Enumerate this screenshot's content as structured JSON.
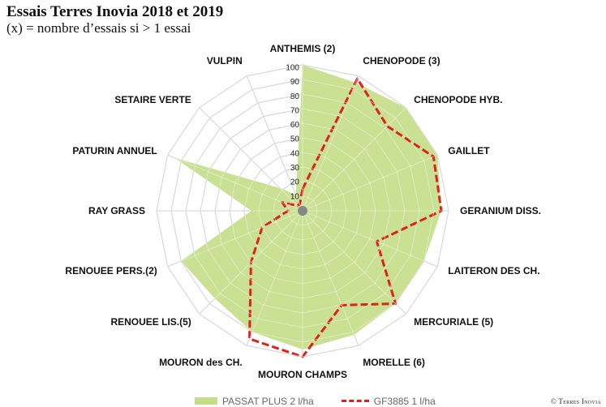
{
  "title": "Essais Terres Inovia 2018 et 2019",
  "subtitle": "(x) = nombre d’essais si > 1 essai",
  "credit": "© Terres Inovia",
  "colors": {
    "series_fill": "#c5de8a",
    "series_dash": "#e0201b",
    "grid": "#b4b4b4"
  },
  "chart_data": {
    "type": "radar",
    "title": "Essais Terres Inovia 2018 et 2019",
    "categories": [
      "ANTHEMIS (2)",
      "CHENOPODE (3)",
      "CHENOPODE HYB.",
      "GAILLET",
      "GERANIUM DISS.",
      "LAITERON DES CH.",
      "MERCURIALE (5)",
      "MORELLE (6)",
      "MOURON CHAMPS",
      "MOURON des CH.",
      "RENOUEE LIS.(5)",
      "RENOUEE PERS.(2)",
      "RAY GRASS",
      "PATURIN ANNUEL",
      "SETAIRE VERTE",
      "VULPIN"
    ],
    "rlim": [
      0,
      100
    ],
    "ticks": [
      10,
      20,
      30,
      40,
      50,
      60,
      70,
      80,
      90,
      100
    ],
    "tick_labels": [
      "10",
      "20",
      "30",
      "40",
      "50",
      "60",
      "70",
      "80",
      "90",
      "100"
    ],
    "grid": true,
    "legend_position": "bottom",
    "series": [
      {
        "name": "PASSAT PLUS 2 l/ha",
        "style": "filled",
        "values": [
          100,
          95,
          100,
          100,
          95,
          90,
          90,
          92,
          95,
          90,
          85,
          90,
          35,
          95,
          22,
          12
        ]
      },
      {
        "name": "GF3885 1 l/ha",
        "style": "dashed",
        "values": [
          15,
          98,
          82,
          97,
          95,
          55,
          90,
          70,
          100,
          95,
          50,
          30,
          10,
          15,
          5,
          5
        ]
      }
    ]
  }
}
